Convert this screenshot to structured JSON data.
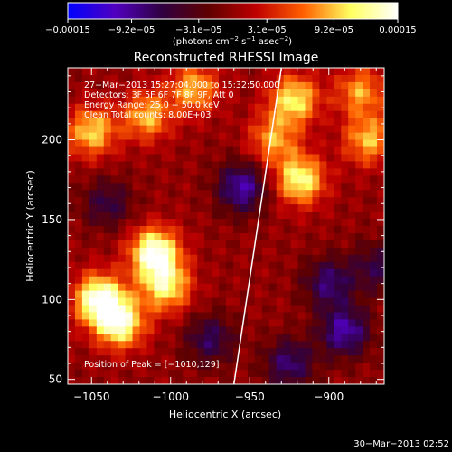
{
  "chart_data": {
    "type": "heatmap",
    "title": "Reconstructed RHESSI Image",
    "xlabel": "Heliocentric X (arcsec)",
    "ylabel": "Heliocentric Y (arcsec)",
    "xlim": [
      -1065,
      -865
    ],
    "ylim": [
      47,
      245
    ],
    "x_ticks": [
      -1050,
      -1000,
      -950,
      -900
    ],
    "y_ticks": [
      50,
      100,
      150,
      200
    ],
    "x_tick_labels": [
      "−1050",
      "−1000",
      "−950",
      "−900"
    ],
    "y_tick_labels": [
      "50",
      "100",
      "150",
      "200"
    ],
    "colorbar": {
      "min": -0.00015,
      "max": 0.00015,
      "tick_values": [
        -0.00015,
        -9.2e-05,
        -3.1e-05,
        3.1e-05,
        9.2e-05,
        0.00015
      ],
      "tick_labels": [
        "−0.00015",
        "−9.2e−05",
        "−3.1e−05",
        "3.1e−05",
        "9.2e−05",
        "0.00015"
      ],
      "units_main": "(photons cm",
      "units_exp1": "−2",
      "units_mid": " s",
      "units_exp2": "−1",
      "units_end": " asec",
      "units_exp3": "−2",
      "units_close": ")",
      "colors": [
        "#0000ff",
        "#5000c0",
        "#300040",
        "#600000",
        "#c00000",
        "#ff6000",
        "#ffff60",
        "#ffffff"
      ]
    },
    "annotations": [
      "27−Mar−2013 15:27:04.000 to 15:32:50.000",
      "Detectors: 3F 5F 6F 7F 8F 9F, Att 0",
      "Energy Range: 25.0 − 50.0 keV",
      "Clean    Total counts: 8.00E+03"
    ],
    "peak_label": "Position of Peak = [−1010,129]",
    "peak_position": [
      -1010,
      129
    ],
    "limb": [
      [
        -960,
        47
      ],
      [
        -930,
        245
      ]
    ],
    "sources": [
      {
        "x": -1045,
        "y": 100,
        "value": 0.00015
      },
      {
        "x": -1032,
        "y": 85,
        "value": 0.00013
      },
      {
        "x": -1010,
        "y": 129,
        "value": 0.00015
      },
      {
        "x": -1003,
        "y": 108,
        "value": 0.00011
      },
      {
        "x": -1050,
        "y": 205,
        "value": 0.0001
      },
      {
        "x": -1015,
        "y": 215,
        "value": 9e-05
      },
      {
        "x": -985,
        "y": 232,
        "value": 9e-05
      },
      {
        "x": -918,
        "y": 175,
        "value": 0.00012
      },
      {
        "x": -922,
        "y": 225,
        "value": 0.00011
      },
      {
        "x": -875,
        "y": 200,
        "value": 9e-05
      },
      {
        "x": -935,
        "y": 200,
        "value": 8e-05
      },
      {
        "x": -880,
        "y": 230,
        "value": 8e-05
      }
    ],
    "sinks": [
      {
        "x": -955,
        "y": 170,
        "value": -0.0001
      },
      {
        "x": -890,
        "y": 80,
        "value": -0.0001
      },
      {
        "x": -900,
        "y": 110,
        "value": -8e-05
      },
      {
        "x": -975,
        "y": 75,
        "value": -7e-05
      },
      {
        "x": -925,
        "y": 60,
        "value": -8e-05
      },
      {
        "x": -1040,
        "y": 160,
        "value": -6e-05
      },
      {
        "x": -870,
        "y": 120,
        "value": -6e-05
      }
    ]
  },
  "footer": {
    "timestamp": "30−Mar−2013 02:52"
  }
}
